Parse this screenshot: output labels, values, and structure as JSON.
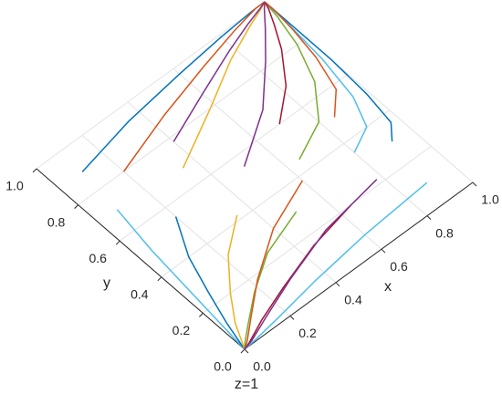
{
  "chart_data": {
    "type": "line3d-top",
    "xlabel": "x",
    "ylabel": "y",
    "zlabel": "z=1",
    "xlim": [
      0,
      1
    ],
    "ylim": [
      0,
      1
    ],
    "xticks": [
      {
        "value": 0,
        "label": "0.0"
      },
      0.2,
      0.4,
      0.6,
      0.8,
      {
        "value": 1,
        "label": "1.0"
      }
    ],
    "yticks": [
      {
        "value": 0,
        "label": "0.0"
      },
      0.2,
      0.4,
      0.6,
      0.8,
      {
        "value": 1,
        "label": "1.0"
      }
    ],
    "grid": true,
    "series": [
      {
        "color": "#0072BD",
        "x": [
          0.1,
          0.35,
          0.6,
          0.8,
          0.95,
          1
        ],
        "y": [
          0.89,
          0.94,
          0.97,
          0.99,
          1.0,
          1
        ]
      },
      {
        "color": "#D95319",
        "x": [
          0.2,
          0.45,
          0.68,
          0.85,
          0.96,
          1
        ],
        "y": [
          0.8,
          0.88,
          0.94,
          0.98,
          1.0,
          1
        ]
      },
      {
        "color": "#EDB120",
        "x": [
          0.35,
          0.58,
          0.76,
          0.9,
          0.98,
          1
        ],
        "y": [
          0.68,
          0.8,
          0.9,
          0.96,
          0.99,
          1
        ]
      },
      {
        "color": "#7E2F8E",
        "x": [
          0.5,
          0.7,
          0.84,
          0.93,
          0.98,
          1
        ],
        "y": [
          0.55,
          0.68,
          0.82,
          0.92,
          0.98,
          1
        ]
      },
      {
        "color": "#77AC30",
        "x": [
          0.65,
          0.8,
          0.9,
          0.96,
          0.99,
          1
        ],
        "y": [
          0.45,
          0.52,
          0.65,
          0.8,
          0.93,
          1
        ]
      },
      {
        "color": "#4DBEEE",
        "x": [
          0.8,
          0.9,
          0.95,
          0.98,
          0.995,
          1
        ],
        "y": [
          0.35,
          0.4,
          0.52,
          0.7,
          0.88,
          1
        ]
      },
      {
        "color": "#0072BD",
        "x": [
          0.92,
          0.97,
          0.99,
          1.0,
          1.0,
          1
        ],
        "y": [
          0.3,
          0.36,
          0.5,
          0.68,
          0.86,
          1
        ]
      },
      {
        "color": "#A2142F",
        "x": [
          0.7,
          0.82,
          0.91,
          0.96,
          0.99,
          1
        ],
        "y": [
          0.6,
          0.7,
          0.82,
          0.91,
          0.97,
          1
        ]
      },
      {
        "color": "#D95319",
        "x": [
          0.85,
          0.93,
          0.97,
          0.99,
          1.0,
          1
        ],
        "y": [
          0.5,
          0.58,
          0.72,
          0.85,
          0.95,
          1
        ]
      },
      {
        "color": "#7E2F8E",
        "x": [
          0.4,
          0.6,
          0.78,
          0.9,
          0.97,
          1
        ],
        "y": [
          0.78,
          0.86,
          0.93,
          0.97,
          0.99,
          1
        ]
      },
      {
        "color": "#4DBEEE",
        "x": [
          0.08,
          0.05,
          0.03,
          0.015,
          0.005,
          0
        ],
        "y": [
          0.7,
          0.5,
          0.3,
          0.15,
          0.05,
          0
        ]
      },
      {
        "color": "#0072BD",
        "x": [
          0.2,
          0.12,
          0.07,
          0.03,
          0.01,
          0
        ],
        "y": [
          0.55,
          0.4,
          0.25,
          0.12,
          0.04,
          0
        ]
      },
      {
        "color": "#EDB120",
        "x": [
          0.35,
          0.22,
          0.12,
          0.05,
          0.015,
          0
        ],
        "y": [
          0.42,
          0.32,
          0.2,
          0.1,
          0.03,
          0
        ]
      },
      {
        "color": "#77AC30",
        "x": [
          0.5,
          0.32,
          0.18,
          0.08,
          0.02,
          0
        ],
        "y": [
          0.3,
          0.24,
          0.15,
          0.07,
          0.02,
          0
        ]
      },
      {
        "color": "#A2142F",
        "x": [
          0.65,
          0.45,
          0.26,
          0.12,
          0.03,
          0
        ],
        "y": [
          0.2,
          0.16,
          0.1,
          0.05,
          0.01,
          0
        ]
      },
      {
        "color": "#4DBEEE",
        "x": [
          0.89,
          0.6,
          0.35,
          0.16,
          0.05,
          0
        ],
        "y": [
          0.1,
          0.08,
          0.05,
          0.02,
          0.005,
          0
        ]
      },
      {
        "color": "#D95319",
        "x": [
          0.6,
          0.4,
          0.22,
          0.1,
          0.03,
          0
        ],
        "y": [
          0.38,
          0.3,
          0.18,
          0.08,
          0.02,
          0
        ]
      },
      {
        "color": "#7E2F8E",
        "x": [
          0.78,
          0.52,
          0.3,
          0.14,
          0.04,
          0
        ],
        "y": [
          0.22,
          0.18,
          0.11,
          0.05,
          0.01,
          0
        ]
      }
    ]
  }
}
